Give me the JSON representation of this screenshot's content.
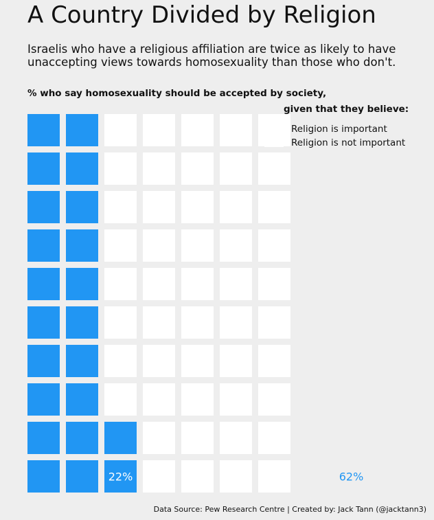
{
  "title": "A Country Divided by Religion",
  "subtitle": "Israelis who have a religious affiliation are twice as likely to have unaccepting views towards homosexuality than those who don't.",
  "caption_line1": "% who say homosexuality should be accepted by society,",
  "caption_line2": "given that they believe:",
  "footer": "Data Source: Pew Research Centre | Created by: Jack Tann (@jacktann3)",
  "colors": {
    "background": "#eeeeee",
    "religion_important": "#2196f3",
    "religion_not_important": "#ffffff"
  },
  "chart_data": {
    "type": "waffle",
    "grid": "10x10 cells per group, 1 cell = 1%",
    "legend_position": "top-right",
    "series": [
      {
        "name": "Religion is important",
        "value": 22,
        "value_label": "22%",
        "color": "#2196f3"
      },
      {
        "name": "Religion is not important",
        "value": 62,
        "value_label": "62%",
        "color": "#ffffff"
      }
    ]
  }
}
